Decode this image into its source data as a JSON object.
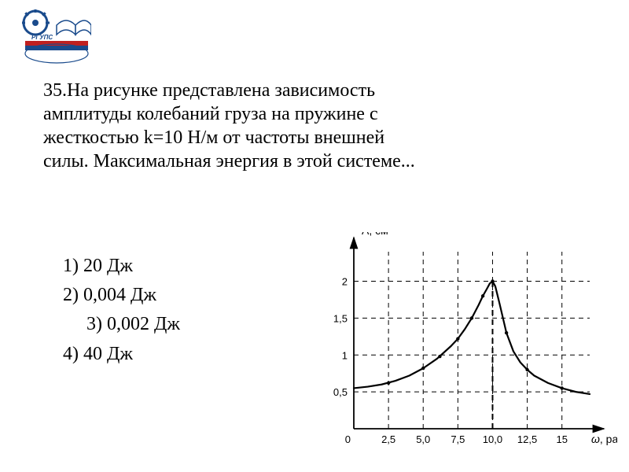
{
  "problem": {
    "text": "35.На рисунке представлена зависимость амплитуды колебаний груза на пружине с жесткостью k=10 Н/м от частоты внешней силы. Максимальная энергия в этой системе..."
  },
  "answers": {
    "a1": "1) 20 Дж",
    "a2": "2) 0,004 Дж",
    "a3": "3) 0,002 Дж",
    "a4": "4) 40 Дж"
  },
  "chart": {
    "type": "line",
    "x_label": ", рад/с",
    "x_symbol": "ω",
    "y_label": "А, см",
    "xlim": [
      0,
      17
    ],
    "ylim": [
      0,
      2.4
    ],
    "xticks": [
      2.5,
      5.0,
      7.5,
      10.0,
      12.5,
      15
    ],
    "xtick_labels": [
      "2,5",
      "5,0",
      "7,5",
      "10,0",
      "12,5",
      "15"
    ],
    "yticks": [
      0.5,
      1,
      1.5,
      2
    ],
    "ytick_labels": [
      "0,5",
      "1",
      "1,5",
      "2"
    ],
    "background_color": "#ffffff",
    "axis_color": "#000000",
    "grid_color": "#000000",
    "curve_color": "#000000",
    "curve_width": 2.2,
    "marker_color": "#000000",
    "marker_radius": 2.2,
    "label_fontsize": 14,
    "tick_fontsize": 13,
    "curve": [
      [
        0,
        0.55
      ],
      [
        1,
        0.57
      ],
      [
        2,
        0.6
      ],
      [
        3,
        0.65
      ],
      [
        4,
        0.72
      ],
      [
        5,
        0.82
      ],
      [
        6,
        0.95
      ],
      [
        7,
        1.12
      ],
      [
        7.5,
        1.22
      ],
      [
        8,
        1.35
      ],
      [
        8.5,
        1.5
      ],
      [
        9,
        1.68
      ],
      [
        9.3,
        1.8
      ],
      [
        9.6,
        1.9
      ],
      [
        9.8,
        1.97
      ],
      [
        10,
        2.0
      ],
      [
        10.2,
        1.93
      ],
      [
        10.5,
        1.7
      ],
      [
        11,
        1.3
      ],
      [
        11.5,
        1.05
      ],
      [
        12,
        0.9
      ],
      [
        12.5,
        0.8
      ],
      [
        13,
        0.72
      ],
      [
        14,
        0.62
      ],
      [
        15,
        0.55
      ],
      [
        16,
        0.5
      ],
      [
        17,
        0.47
      ]
    ],
    "points": [
      [
        2.5,
        0.62
      ],
      [
        5,
        0.82
      ],
      [
        6.2,
        0.98
      ],
      [
        7.5,
        1.22
      ],
      [
        8.5,
        1.5
      ],
      [
        9.3,
        1.8
      ],
      [
        10,
        2.0
      ],
      [
        11,
        1.3
      ],
      [
        12.5,
        0.8
      ],
      [
        15,
        0.55
      ]
    ],
    "peak_x": 10,
    "peak_y": 2,
    "origin_label": "0"
  },
  "logo": {
    "text": "РГУПС",
    "gear_color": "#1a4b8c",
    "book_color": "#1a4b8c",
    "red_stripe": "#c02020",
    "blue_stripe": "#1a4b8c"
  }
}
